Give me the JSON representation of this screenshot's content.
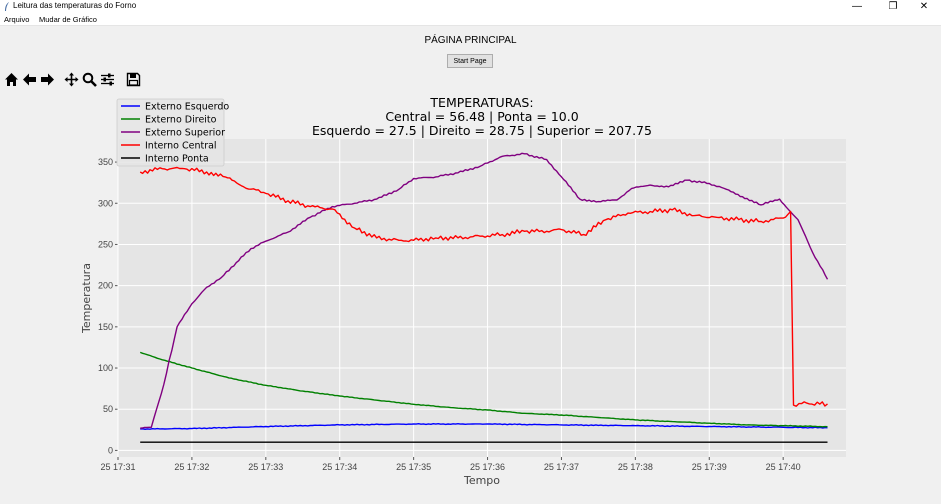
{
  "window": {
    "title": "Leitura das temperaturas do Forno",
    "controls": {
      "minimize": "—",
      "maximize": "❐",
      "close": "✕"
    }
  },
  "menu": {
    "items": [
      "Arquivo",
      "Mudar de Gráfico"
    ]
  },
  "page": {
    "title": "PÁGINA PRINCIPAL",
    "start_button": "Start Page"
  },
  "toolbar": {
    "icons": [
      "home-icon",
      "back-arrow-icon",
      "forward-arrow-icon",
      "pan-icon",
      "zoom-icon",
      "configure-subplots-icon",
      "save-icon"
    ]
  },
  "chart_data": {
    "type": "line",
    "title_lines": [
      "TEMPERATURAS:",
      "Central = 56.48 | Ponta = 10.0",
      "Esquerdo = 27.5 | Direito = 28.75 | Superior = 207.75"
    ],
    "xlabel": "Tempo",
    "ylabel": "Temperatura",
    "xticks": [
      "25 17:31",
      "25 17:32",
      "25 17:33",
      "25 17:34",
      "25 17:35",
      "25 17:36",
      "25 17:37",
      "25 17:38",
      "25 17:39",
      "25 17:40"
    ],
    "yticks": [
      "0",
      "50",
      "100",
      "150",
      "200",
      "250",
      "300",
      "350"
    ],
    "x_unit": "minutes after 17:31",
    "xlim": [
      0.0,
      9.85
    ],
    "ylim": [
      -8,
      378
    ],
    "grid": true,
    "legend_position": "top-left",
    "series": [
      {
        "name": "Externo Esquerdo",
        "color": "#0000ff",
        "x": [
          0.3,
          1.0,
          2.0,
          3.0,
          4.0,
          5.0,
          6.0,
          7.0,
          8.0,
          9.0,
          9.6
        ],
        "y": [
          26,
          26.5,
          29,
          31,
          32,
          32,
          31,
          30,
          29,
          28,
          27.5
        ]
      },
      {
        "name": "Externo Direito",
        "color": "#008000",
        "x": [
          0.3,
          0.6,
          1.0,
          1.5,
          2.0,
          2.5,
          3.0,
          3.5,
          4.0,
          4.5,
          5.0,
          5.5,
          6.0,
          6.5,
          7.0,
          7.5,
          8.0,
          8.5,
          9.0,
          9.6
        ],
        "y": [
          119,
          110,
          100,
          88,
          79,
          72,
          66,
          61,
          56,
          52,
          49,
          45,
          43,
          40,
          37,
          35,
          33,
          31,
          30,
          28.75
        ]
      },
      {
        "name": "Externo Superior",
        "color": "#800080",
        "x": [
          0.3,
          0.45,
          0.62,
          0.8,
          1.0,
          1.2,
          1.4,
          1.6,
          1.8,
          2.0,
          2.3,
          2.6,
          2.9,
          3.2,
          3.5,
          3.8,
          4.0,
          4.3,
          4.6,
          4.9,
          5.2,
          5.5,
          5.8,
          6.0,
          6.25,
          6.5,
          6.75,
          6.95,
          7.2,
          7.45,
          7.7,
          8.0,
          8.2,
          8.45,
          8.7,
          8.95,
          9.2,
          9.4,
          9.6
        ],
        "y": [
          27,
          28,
          80,
          150,
          178,
          198,
          210,
          228,
          245,
          254,
          265,
          283,
          296,
          300,
          305,
          317,
          330,
          332,
          337,
          345,
          357,
          360,
          353,
          332,
          305,
          302,
          304,
          318,
          322,
          320,
          328,
          324,
          318,
          308,
          298,
          305,
          280,
          240,
          207.75
        ]
      },
      {
        "name": "Interno Central",
        "color": "#ff0000",
        "x": [
          0.3,
          0.6,
          0.9,
          1.2,
          1.45,
          1.7,
          2.0,
          2.3,
          2.6,
          2.9,
          3.2,
          3.5,
          3.8,
          4.0,
          4.3,
          4.6,
          4.9,
          5.2,
          5.5,
          5.8,
          6.0,
          6.3,
          6.6,
          6.9,
          7.2,
          7.5,
          7.8,
          8.1,
          8.4,
          8.7,
          9.0,
          9.1,
          9.14,
          9.25,
          9.6
        ],
        "y": [
          338,
          342,
          342,
          338,
          332,
          320,
          312,
          303,
          296,
          293,
          270,
          258,
          255,
          255,
          258,
          258,
          260,
          262,
          266,
          266,
          268,
          262,
          280,
          288,
          290,
          292,
          285,
          283,
          280,
          278,
          282,
          290,
          55,
          57,
          56.48
        ]
      },
      {
        "name": "Interno Ponta",
        "color": "#000000",
        "x": [
          0.3,
          9.6
        ],
        "y": [
          10,
          10
        ]
      }
    ]
  }
}
